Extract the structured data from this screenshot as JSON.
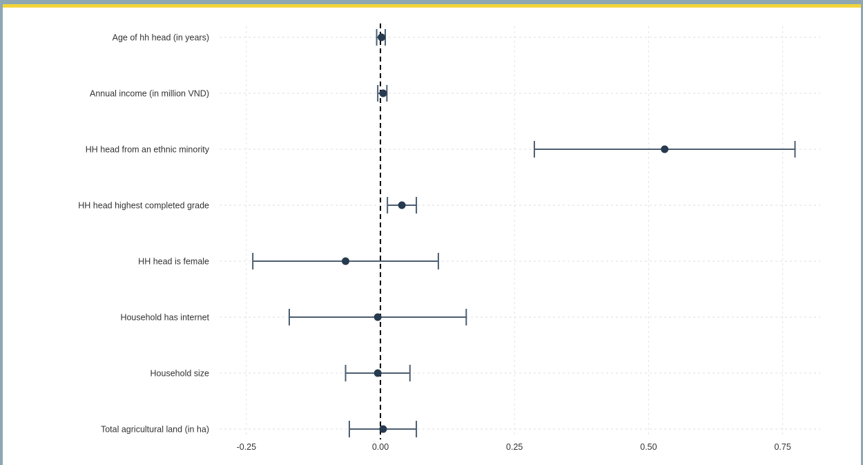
{
  "chart_data": {
    "type": "scatter",
    "subtype": "coefficient-plot",
    "title": "",
    "xlabel": "",
    "ylabel": "",
    "xlim": [
      -0.3,
      0.82
    ],
    "x_ticks": [
      -0.25,
      0.0,
      0.25,
      0.5,
      0.75
    ],
    "x_tick_labels": [
      "-0.25",
      "0.00",
      "0.25",
      "0.50",
      "0.75"
    ],
    "reference_line": 0.0,
    "grid": true,
    "variables": [
      {
        "label": "Age of hh head (in years)",
        "estimate": 0.002,
        "ci_low": -0.007,
        "ci_high": 0.009
      },
      {
        "label": "Annual income (in million VND)",
        "estimate": 0.005,
        "ci_low": -0.005,
        "ci_high": 0.012
      },
      {
        "label": "HH head from an ethnic minority",
        "estimate": 0.53,
        "ci_low": 0.287,
        "ci_high": 0.773
      },
      {
        "label": "HH head highest completed grade",
        "estimate": 0.04,
        "ci_low": 0.013,
        "ci_high": 0.067
      },
      {
        "label": "HH head is female",
        "estimate": -0.065,
        "ci_low": -0.238,
        "ci_high": 0.108
      },
      {
        "label": "Household has internet",
        "estimate": -0.005,
        "ci_low": -0.17,
        "ci_high": 0.16
      },
      {
        "label": "Household size",
        "estimate": -0.005,
        "ci_low": -0.065,
        "ci_high": 0.055
      },
      {
        "label": "Total agricultural land (in ha)",
        "estimate": 0.005,
        "ci_low": -0.058,
        "ci_high": 0.067
      }
    ],
    "colors": {
      "point": "#273a4f",
      "errorbar": "#4b5d70",
      "reference": "#000000",
      "grid": "#e3e3e3"
    }
  }
}
